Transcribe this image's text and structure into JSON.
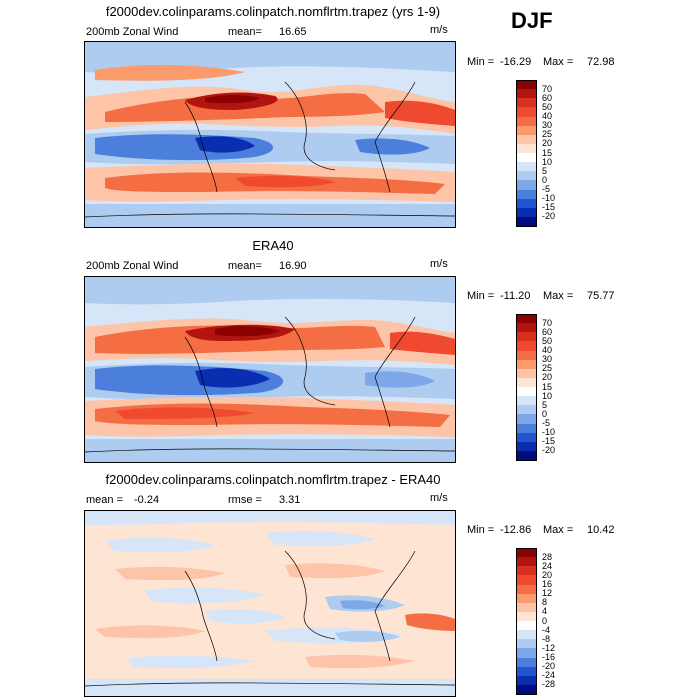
{
  "season": "DJF",
  "units": "m/s",
  "panels": [
    {
      "id": "model",
      "title": "f2000dev.colinparams.colinpatch.nomflrtm.trapez (yrs 1-9)",
      "left_label": "200mb Zonal Wind",
      "stat_label": "mean=",
      "stat_value": "16.65",
      "units": "m/s",
      "min_label": "Min =",
      "min_value": "-16.29",
      "max_label": "Max =",
      "max_value": "72.98",
      "colorbar": {
        "labels": [
          "70",
          "60",
          "50",
          "40",
          "30",
          "25",
          "20",
          "15",
          "10",
          "5",
          "0",
          "-5",
          "-10",
          "-15",
          "-20"
        ],
        "colors": [
          "#8b0000",
          "#b2140f",
          "#d7301f",
          "#ef4a2f",
          "#f46d43",
          "#fb9a6b",
          "#fdc4a8",
          "#fde4d3",
          "#ffffff",
          "#d6e6f8",
          "#aecbf0",
          "#7da7e8",
          "#4c7fdc",
          "#2154d0",
          "#0a2eb0",
          "#000c80"
        ]
      }
    },
    {
      "id": "obs",
      "title": "ERA40",
      "left_label": "200mb Zonal Wind",
      "stat_label": "mean=",
      "stat_value": "16.90",
      "units": "m/s",
      "min_label": "Min =",
      "min_value": "-11.20",
      "max_label": "Max =",
      "max_value": "75.77",
      "colorbar": {
        "labels": [
          "70",
          "60",
          "50",
          "40",
          "30",
          "25",
          "20",
          "15",
          "10",
          "5",
          "0",
          "-5",
          "-10",
          "-15",
          "-20"
        ],
        "colors": [
          "#8b0000",
          "#b2140f",
          "#d7301f",
          "#ef4a2f",
          "#f46d43",
          "#fb9a6b",
          "#fdc4a8",
          "#fde4d3",
          "#ffffff",
          "#d6e6f8",
          "#aecbf0",
          "#7da7e8",
          "#4c7fdc",
          "#2154d0",
          "#0a2eb0",
          "#000c80"
        ]
      }
    },
    {
      "id": "diff",
      "title": "f2000dev.colinparams.colinpatch.nomflrtm.trapez - ERA40",
      "left_label": "mean =",
      "left_value": "-0.24",
      "stat_label": "rmse =",
      "stat_value": "3.31",
      "units": "m/s",
      "min_label": "Min =",
      "min_value": "-12.86",
      "max_label": "Max =",
      "max_value": "10.42",
      "colorbar": {
        "labels": [
          "28",
          "24",
          "20",
          "16",
          "12",
          "8",
          "4",
          "0",
          "-4",
          "-8",
          "-12",
          "-16",
          "-20",
          "-24",
          "-28"
        ],
        "colors": [
          "#8b0000",
          "#b2140f",
          "#d7301f",
          "#ef4a2f",
          "#f46d43",
          "#fb9a6b",
          "#fdc4a8",
          "#fde4d3",
          "#ffffff",
          "#d6e6f8",
          "#aecbf0",
          "#7da7e8",
          "#4c7fdc",
          "#2154d0",
          "#0a2eb0",
          "#000c80"
        ]
      }
    }
  ]
}
